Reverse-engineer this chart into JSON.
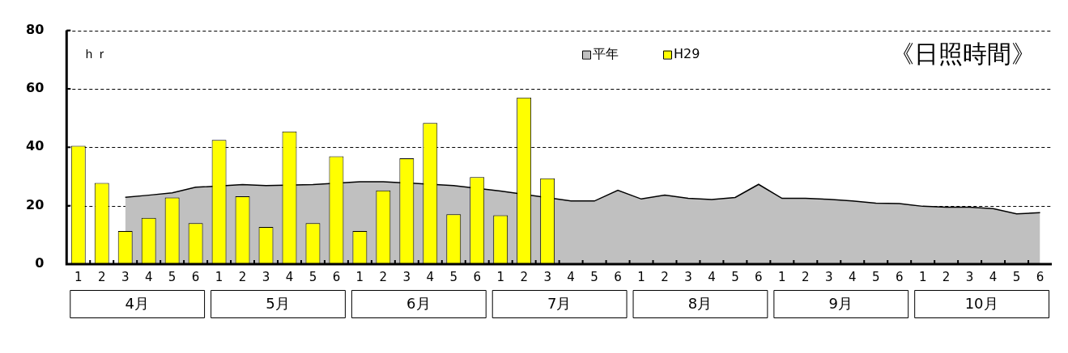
{
  "chart_data": {
    "type": "bar",
    "title": "《日照時間》",
    "ylabel": "ｈｒ",
    "categories": [
      "1",
      "2",
      "3",
      "4",
      "5",
      "6",
      "1",
      "2",
      "3",
      "4",
      "5",
      "6",
      "1",
      "2",
      "3",
      "4",
      "5",
      "6",
      "1",
      "2",
      "3",
      "4",
      "5",
      "6",
      "1",
      "2",
      "3",
      "4",
      "5",
      "6",
      "1",
      "2",
      "3",
      "4",
      "5",
      "6",
      "1",
      "2",
      "3",
      "4",
      "5",
      "6"
    ],
    "annotations": [
      "4月",
      "5月",
      "6月",
      "7月",
      "8月",
      "9月",
      "10月"
    ],
    "series": [
      {
        "name": "平年",
        "type": "area",
        "color": "#c0c0c0",
        "values": [
          null,
          null,
          22.9,
          23.6,
          24.4,
          26.3,
          null,
          27.2,
          26.9,
          null,
          27.2,
          null,
          28.2,
          28.2,
          null,
          null,
          26.9,
          null,
          25.0,
          null,
          null,
          21.6,
          21.6,
          25.3,
          22.3,
          23.6,
          22.5,
          22.1,
          22.8,
          27.3,
          22.5,
          22.5,
          22.2,
          21.6,
          20.9,
          20.7,
          19.8,
          19.5,
          19.5,
          19.0,
          17.2,
          17.6
        ]
      },
      {
        "name": "H29",
        "type": "bar",
        "color": "#ffff00",
        "values": [
          40.5,
          27.8,
          11.3,
          15.8,
          22.8,
          14.0,
          42.5,
          23.2,
          12.7,
          45.4,
          14.0,
          36.9,
          11.3,
          25.2,
          36.2,
          48.3,
          17.1,
          29.8,
          16.7,
          57.0,
          29.4,
          null,
          null,
          null,
          null,
          null,
          null,
          null,
          null,
          null,
          null,
          null,
          null,
          null,
          null,
          null,
          null,
          null,
          null,
          null,
          null,
          null
        ]
      }
    ],
    "ylim": [
      0,
      80
    ],
    "yticks": [
      0,
      20,
      40,
      60,
      80
    ],
    "grid": "y",
    "legend": "top right"
  }
}
